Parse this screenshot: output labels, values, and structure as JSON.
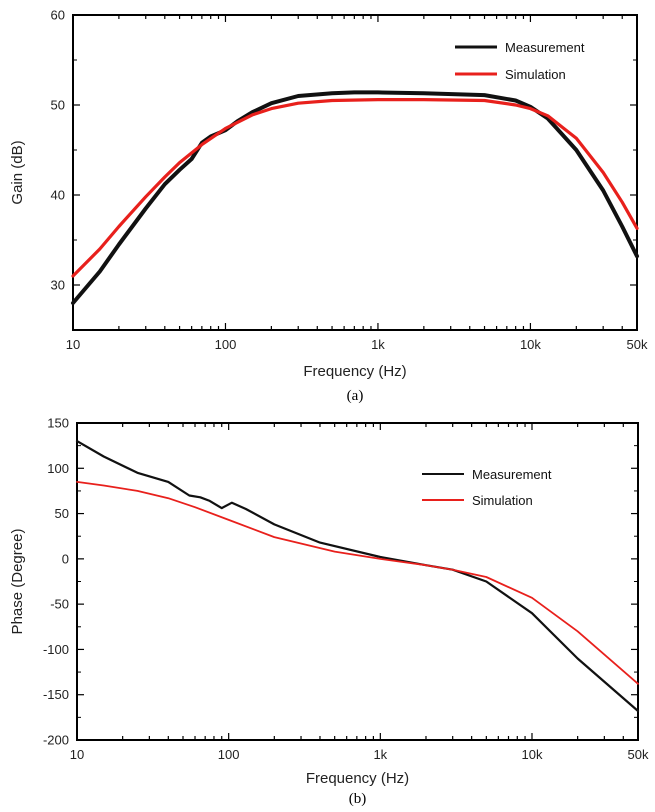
{
  "colors": {
    "measurement": "#111111",
    "simulation": "#e8201c"
  },
  "chart_data": [
    {
      "type": "line",
      "caption": "(a)",
      "xlabel": "Frequency (Hz)",
      "ylabel": "Gain (dB)",
      "xscale": "log",
      "xlim": [
        10,
        50000
      ],
      "ylim": [
        25,
        60
      ],
      "xticks": [
        10,
        100,
        1000,
        10000,
        50000
      ],
      "xtick_labels": [
        "10",
        "100",
        "1k",
        "10k",
        "50k"
      ],
      "yticks": [
        30,
        40,
        50,
        60
      ],
      "ytick_labels": [
        "30",
        "40",
        "50",
        "60"
      ],
      "legend_position": "top-right",
      "series": [
        {
          "name": "Measurement",
          "color": "#111111",
          "x": [
            10,
            15,
            20,
            30,
            40,
            50,
            60,
            70,
            80,
            100,
            120,
            150,
            200,
            300,
            500,
            700,
            1000,
            2000,
            5000,
            8000,
            10000,
            13000,
            20000,
            30000,
            40000,
            50000
          ],
          "y": [
            28.0,
            31.5,
            34.5,
            38.5,
            41.2,
            42.8,
            44.0,
            45.8,
            46.5,
            47.2,
            48.2,
            49.2,
            50.2,
            51.0,
            51.3,
            51.4,
            51.4,
            51.3,
            51.1,
            50.5,
            49.8,
            48.5,
            45.0,
            40.5,
            36.5,
            33.2
          ]
        },
        {
          "name": "Simulation",
          "color": "#e8201c",
          "x": [
            10,
            15,
            20,
            30,
            40,
            50,
            70,
            100,
            150,
            200,
            300,
            500,
            1000,
            2000,
            5000,
            8000,
            10000,
            13000,
            20000,
            30000,
            40000,
            50000
          ],
          "y": [
            31.0,
            34.0,
            36.5,
            39.8,
            42.0,
            43.6,
            45.6,
            47.4,
            48.9,
            49.6,
            50.2,
            50.5,
            50.6,
            50.6,
            50.5,
            50.0,
            49.6,
            48.8,
            46.3,
            42.5,
            39.2,
            36.3
          ]
        }
      ]
    },
    {
      "type": "line",
      "caption": "(b)",
      "xlabel": "Frequency (Hz)",
      "ylabel": "Phase (Degree)",
      "xscale": "log",
      "xlim": [
        10,
        50000
      ],
      "ylim": [
        -200,
        150
      ],
      "xticks": [
        10,
        100,
        1000,
        10000,
        50000
      ],
      "xtick_labels": [
        "10",
        "100",
        "1k",
        "10k",
        "50k"
      ],
      "yticks": [
        -200,
        -150,
        -100,
        -50,
        0,
        50,
        100,
        150
      ],
      "ytick_labels": [
        "-200",
        "-150",
        "-100",
        "-50",
        "0",
        "50",
        "100",
        "150"
      ],
      "legend_position": "top-right",
      "series": [
        {
          "name": "Measurement",
          "color": "#111111",
          "x": [
            10,
            15,
            25,
            40,
            55,
            65,
            75,
            90,
            105,
            130,
            200,
            400,
            1000,
            2000,
            3000,
            5000,
            10000,
            20000,
            50000
          ],
          "y": [
            130,
            113,
            95,
            85,
            70,
            68,
            64,
            56,
            62,
            55,
            38,
            18,
            2,
            -7,
            -12,
            -25,
            -60,
            -110,
            -168
          ]
        },
        {
          "name": "Simulation",
          "color": "#e8201c",
          "x": [
            10,
            15,
            25,
            40,
            60,
            100,
            200,
            500,
            1000,
            2000,
            3000,
            5000,
            10000,
            20000,
            50000
          ],
          "y": [
            85,
            81,
            75,
            67,
            57,
            43,
            24,
            8,
            0,
            -7,
            -12,
            -20,
            -43,
            -80,
            -138
          ]
        }
      ]
    }
  ]
}
